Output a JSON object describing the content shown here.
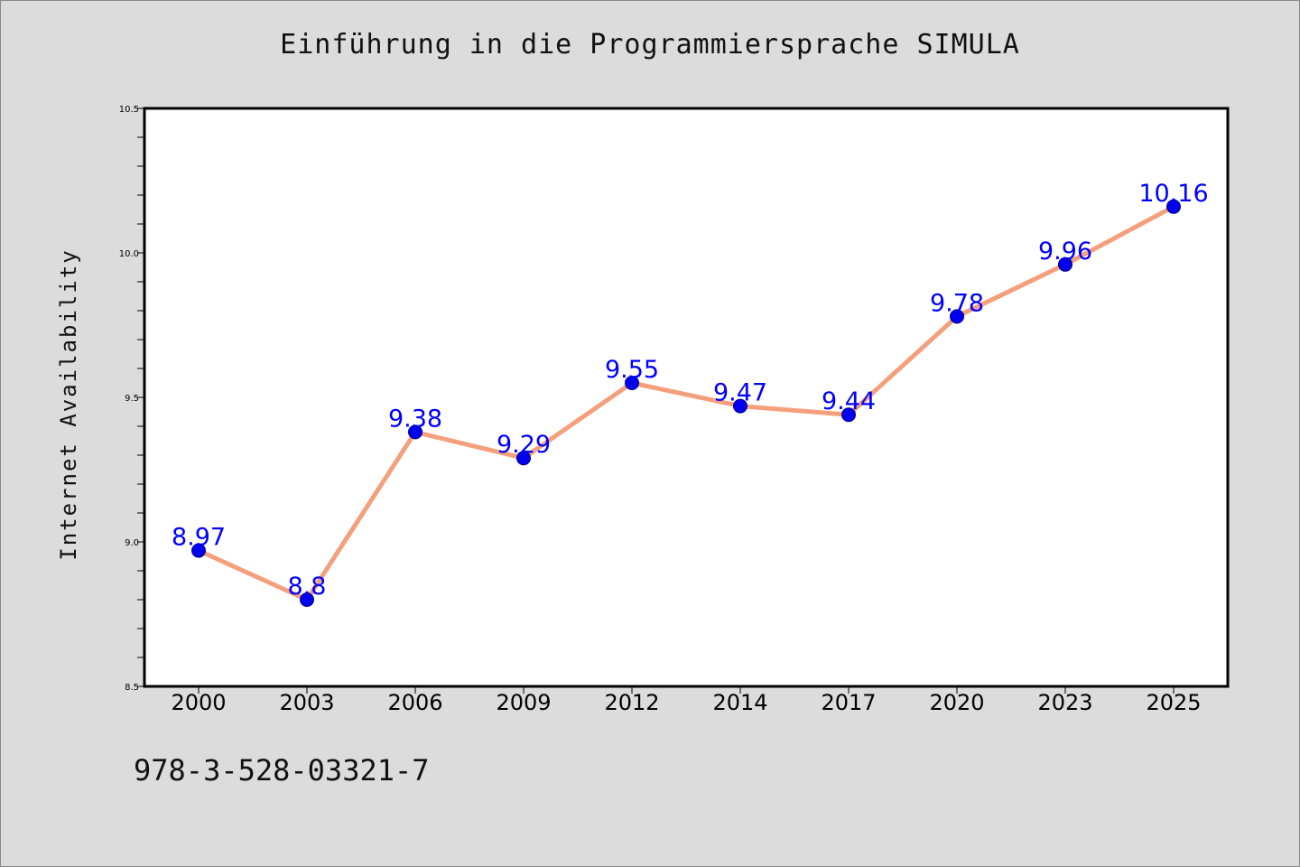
{
  "chart_data": {
    "type": "line",
    "title": "Einführung in die Programmiersprache SIMULA",
    "xlabel": "",
    "ylabel": "Internet Availability",
    "categories": [
      "2000",
      "2003",
      "2006",
      "2009",
      "2012",
      "2014",
      "2017",
      "2020",
      "2023",
      "2025"
    ],
    "series": [
      {
        "values": [
          8.97,
          8.8,
          9.38,
          9.29,
          9.55,
          9.47,
          9.44,
          9.78,
          9.96,
          10.16
        ],
        "labels": [
          "8.97",
          "8.8",
          "9.38",
          "9.29",
          "9.55",
          "9.47",
          "9.44",
          "9.78",
          "9.96",
          "10.16"
        ]
      }
    ],
    "ylim": [
      8.5,
      10.5
    ],
    "yticks": [
      "8.5",
      "9.0",
      "9.5",
      "10.0",
      "10.5"
    ],
    "grid": false,
    "legend": "none",
    "colors": {
      "line": "#f4a07c",
      "marker": "#0000ee",
      "data_label": "#0000ff",
      "background": "#dcdcdc",
      "plot_area": "#ffffff"
    }
  },
  "footer": {
    "text": "978-3-528-03321-7"
  }
}
